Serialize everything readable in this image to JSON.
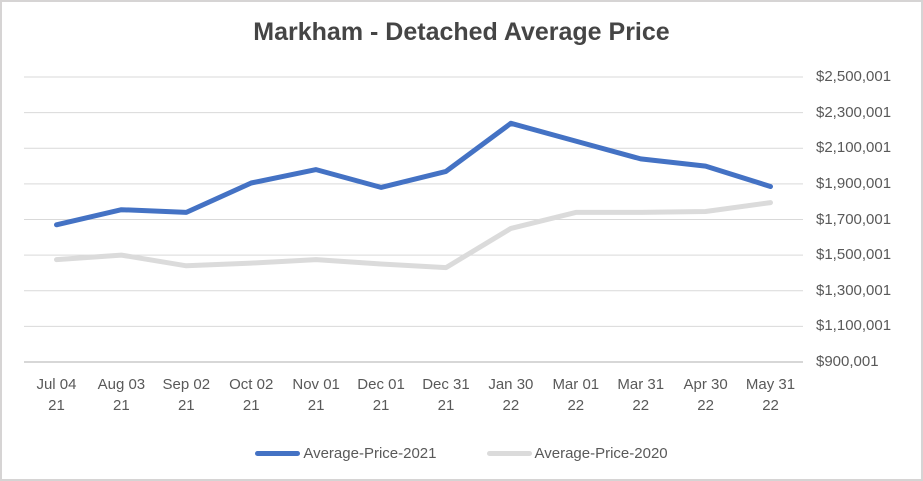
{
  "window": {
    "background": "#FFFFFF",
    "border_color": "#D6D4D4"
  },
  "chart_data": {
    "type": "line",
    "title": "Markham - Detached Average Price",
    "categories": [
      "Jul 04 21",
      "Aug 03 21",
      "Sep 02 21",
      "Oct 02 21",
      "Nov 01 21",
      "Dec 01 21",
      "Dec 31 21",
      "Jan 30 22",
      "Mar 01 22",
      "Mar 31 22",
      "Apr 30 22",
      "May 31 22"
    ],
    "series": [
      {
        "name": "Average-Price-2021",
        "color": "#4472C4",
        "stroke_width": 5,
        "values": [
          1670000,
          1755000,
          1740000,
          1905000,
          1980000,
          1880000,
          1970000,
          2240000,
          2140000,
          2040000,
          2000000,
          1885000
        ]
      },
      {
        "name": "Average-Price-2020",
        "color": "#DBDBDB",
        "stroke_width": 5,
        "values": [
          1475000,
          1500000,
          1440000,
          1455000,
          1475000,
          1450000,
          1430000,
          1650000,
          1740000,
          1740000,
          1745000,
          1795000
        ]
      }
    ],
    "y_axis": {
      "side": "right",
      "min": 900001,
      "max": 2500001,
      "step": 200000,
      "tick_labels": [
        "$900,001",
        "$1,100,001",
        "$1,300,001",
        "$1,500,001",
        "$1,700,001",
        "$1,900,001",
        "$2,100,001",
        "$2,300,001",
        "$2,500,001"
      ]
    },
    "grid": true,
    "legend_position": "bottom",
    "colors": {
      "gridline": "#D9D9D9",
      "axis_line": "#BFBFBF",
      "tick_text": "#595959",
      "title_text": "#454545"
    }
  }
}
